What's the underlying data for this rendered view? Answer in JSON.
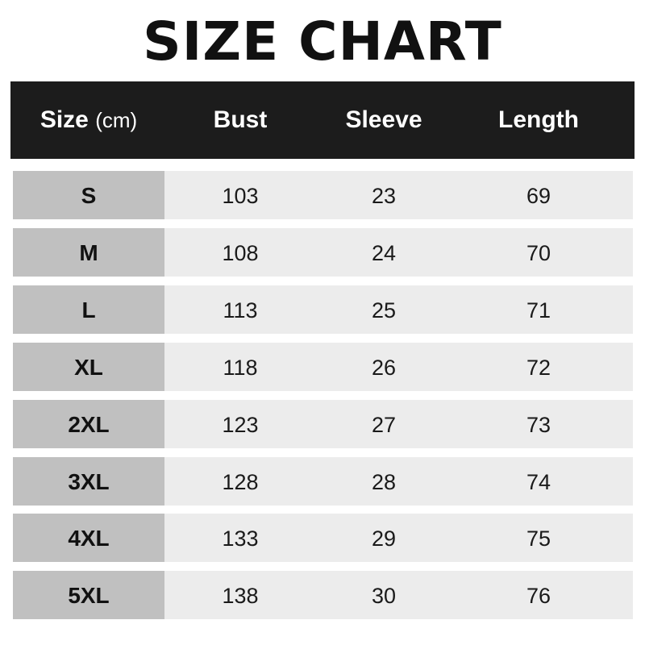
{
  "title": "SIZE CHART",
  "header": {
    "size": "Size",
    "unit": "(cm)",
    "bust": "Bust",
    "sleeve": "Sleeve",
    "length": "Length"
  },
  "colors": {
    "header_bg": "#1c1c1c",
    "size_col_bg": "#c0c0c0",
    "row_bg": "#ececec"
  },
  "rows": [
    {
      "size": "S",
      "bust": "103",
      "sleeve": "23",
      "length": "69"
    },
    {
      "size": "M",
      "bust": "108",
      "sleeve": "24",
      "length": "70"
    },
    {
      "size": "L",
      "bust": "113",
      "sleeve": "25",
      "length": "71"
    },
    {
      "size": "XL",
      "bust": "118",
      "sleeve": "26",
      "length": "72"
    },
    {
      "size": "2XL",
      "bust": "123",
      "sleeve": "27",
      "length": "73"
    },
    {
      "size": "3XL",
      "bust": "128",
      "sleeve": "28",
      "length": "74"
    },
    {
      "size": "4XL",
      "bust": "133",
      "sleeve": "29",
      "length": "75"
    },
    {
      "size": "5XL",
      "bust": "138",
      "sleeve": "30",
      "length": "76"
    }
  ]
}
